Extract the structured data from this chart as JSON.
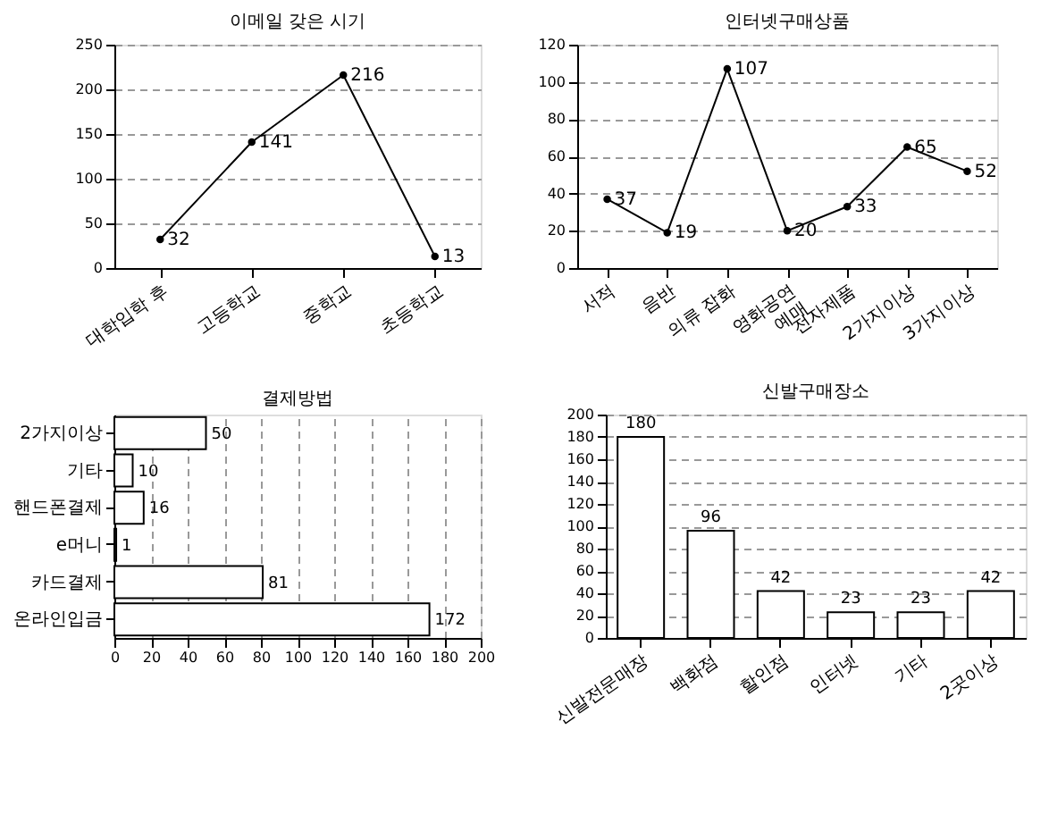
{
  "chart_data": [
    {
      "type": "line",
      "title": "이메일 갖은 시기",
      "categories": [
        "대학입학 후",
        "고등학교",
        "중학교",
        "초등학교"
      ],
      "values": [
        32,
        141,
        216,
        13
      ],
      "color": "#000000",
      "ylim": [
        0,
        250
      ],
      "yticks": [
        0,
        50,
        100,
        150,
        200,
        250
      ],
      "grid": "y",
      "marker": "circle",
      "line_style": "solid",
      "data_labels": true
    },
    {
      "type": "line",
      "title": "인터넷구매상품",
      "categories": [
        "서적",
        "음반",
        "의류 잡화",
        "영화공연\n예매",
        "전자제품",
        "2가지이상",
        "3가지이상"
      ],
      "values": [
        37,
        19,
        107,
        20,
        33,
        65,
        52
      ],
      "color": "#000000",
      "ylim": [
        0,
        120
      ],
      "yticks": [
        0,
        20,
        40,
        60,
        80,
        100,
        120
      ],
      "grid": "y",
      "marker": "circle",
      "line_style": "solid",
      "data_labels": true
    },
    {
      "type": "bar",
      "orientation": "horizontal",
      "title": "결제방법",
      "categories": [
        "2가지이상",
        "기타",
        "핸드폰결제",
        "e머니",
        "카드결제",
        "온라인입금"
      ],
      "values": [
        50,
        10,
        16,
        1,
        81,
        172
      ],
      "color": "#ffffff",
      "xlim": [
        0,
        200
      ],
      "xticks": [
        0,
        20,
        40,
        60,
        80,
        100,
        120,
        140,
        160,
        180,
        200
      ],
      "grid": "x",
      "data_labels": true
    },
    {
      "type": "bar",
      "title": "신발구매장소",
      "categories": [
        "신발전문매장",
        "백화점",
        "할인점",
        "인터넷",
        "기타",
        "2곳이상"
      ],
      "values": [
        180,
        96,
        42,
        23,
        23,
        42
      ],
      "color": "#ffffff",
      "ylim": [
        0,
        200
      ],
      "yticks": [
        0,
        20,
        40,
        60,
        80,
        100,
        120,
        140,
        160,
        180,
        200
      ],
      "grid": "y",
      "data_labels": true
    }
  ]
}
